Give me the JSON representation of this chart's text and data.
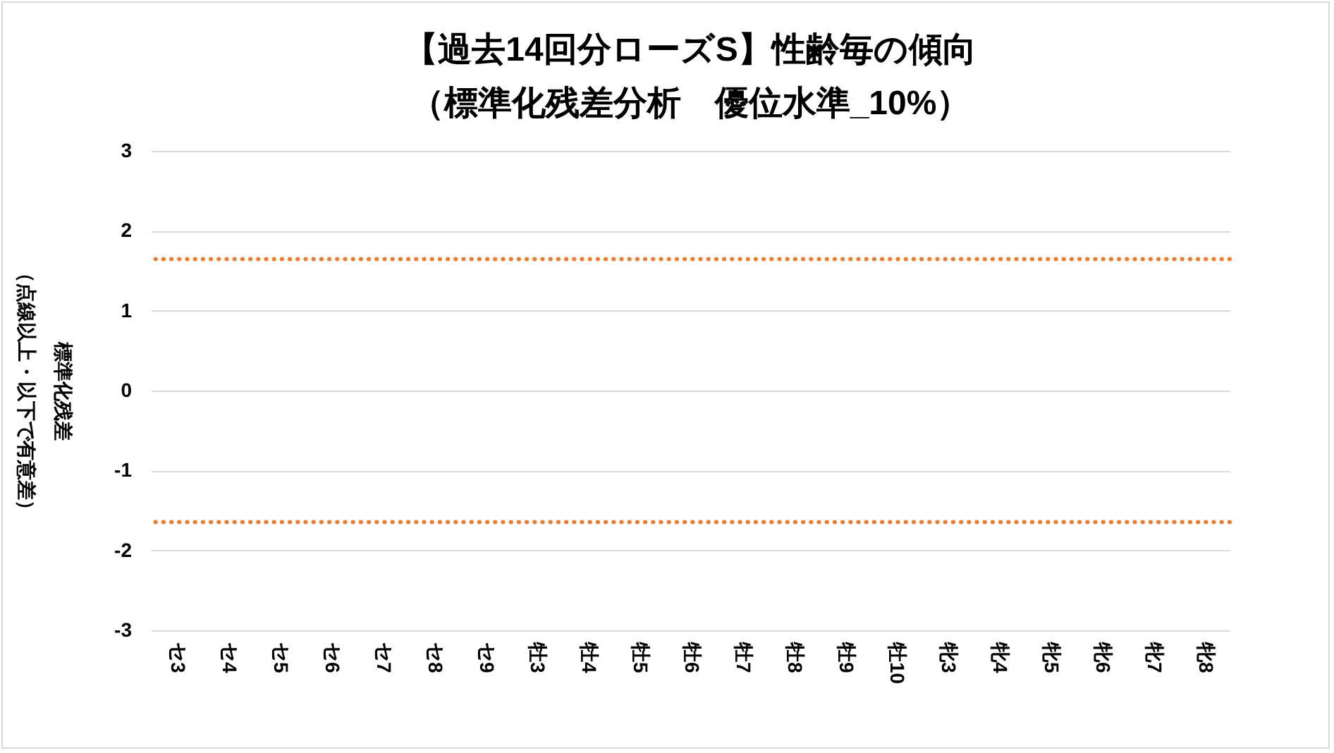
{
  "chart_data": {
    "type": "line",
    "title": "【過去14回分ローズS】性齢毎の傾向",
    "subtitle": "（標準化残差分析　優位水準_10%）",
    "ylabel": "標準化残差",
    "annotations": [
      "（点線以上・以下で有意差）"
    ],
    "categories": [
      "セ3",
      "セ4",
      "セ5",
      "セ6",
      "セ7",
      "セ8",
      "セ9",
      "牡3",
      "牡4",
      "牡5",
      "牡6",
      "牡7",
      "牡8",
      "牡9",
      "牡10",
      "牝3",
      "牝4",
      "牝5",
      "牝6",
      "牝7",
      "牝8"
    ],
    "values": [
      null,
      null,
      null,
      null,
      null,
      null,
      null,
      null,
      null,
      null,
      null,
      null,
      null,
      null,
      null,
      null,
      null,
      null,
      null,
      null,
      null
    ],
    "ylim": [
      -3,
      3
    ],
    "yticks": [
      -3,
      -2,
      -1,
      0,
      1,
      2,
      3
    ],
    "grid": "y",
    "ref_lines": [
      {
        "axis": "y",
        "value": 1.645,
        "color": "#ed7d31",
        "line_style": "dotted"
      },
      {
        "axis": "y",
        "value": -1.645,
        "color": "#ed7d31",
        "line_style": "dotted"
      }
    ]
  }
}
